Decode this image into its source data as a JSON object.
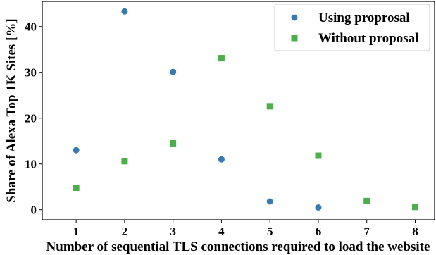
{
  "chart_data": {
    "type": "scatter",
    "xlabel": "Number of sequential TLS connections required to load the website",
    "ylabel": "Share of Alexa Top 1K Sites [%]",
    "xlim": [
      0.3,
      8.4
    ],
    "ylim": [
      -2.2,
      45.5
    ],
    "xticks": [
      1,
      2,
      3,
      4,
      5,
      6,
      7,
      8
    ],
    "yticks": [
      0,
      10,
      20,
      30,
      40
    ],
    "grid": false,
    "legend_position": "top-right",
    "series": [
      {
        "name": "Using proprosal",
        "marker": "circle",
        "color": "#3a78b0",
        "x": [
          1,
          2,
          3,
          4,
          5,
          6
        ],
        "y": [
          13.0,
          43.3,
          30.1,
          11.0,
          1.8,
          0.5
        ]
      },
      {
        "name": "Without proposal",
        "marker": "square",
        "color": "#4daf4a",
        "x": [
          1,
          2,
          3,
          4,
          5,
          6,
          7,
          8
        ],
        "y": [
          4.8,
          10.6,
          14.5,
          33.1,
          22.6,
          11.8,
          1.9,
          0.6
        ]
      }
    ]
  }
}
